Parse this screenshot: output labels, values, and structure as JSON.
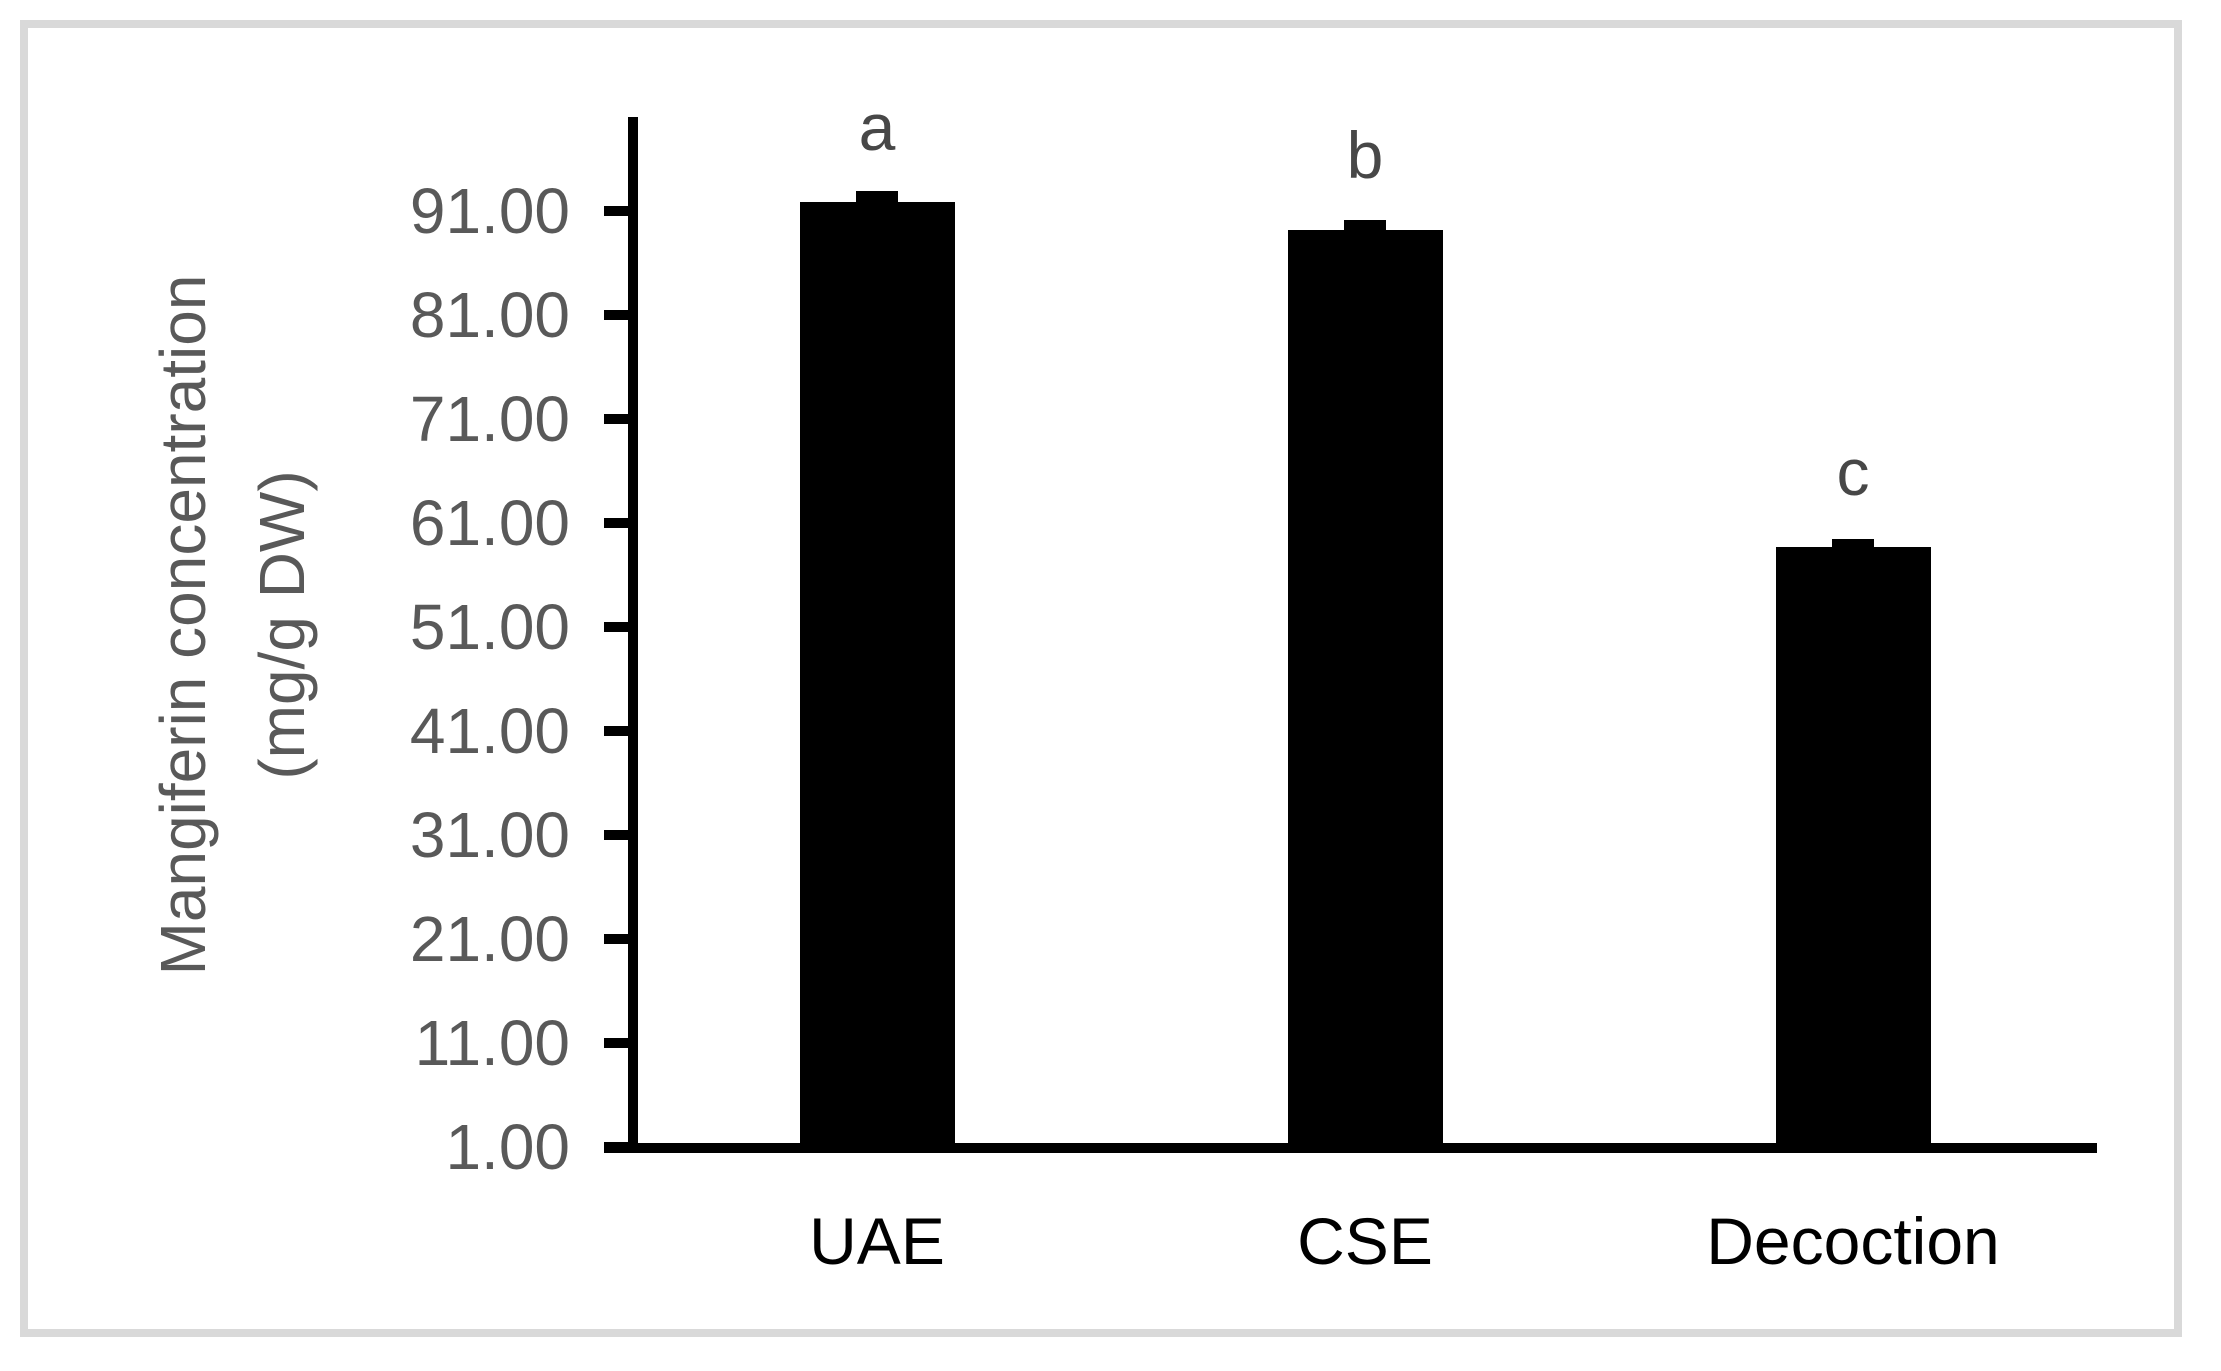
{
  "frame": {
    "border_color": "#d9d9d9",
    "background_color": "#ffffff"
  },
  "chart_data": {
    "type": "bar",
    "title": "",
    "categories": [
      "UAE",
      "CSE",
      "Decoction"
    ],
    "values": [
      91.8,
      89.1,
      58.7
    ],
    "error_bars": [
      1.1,
      1.0,
      0.7
    ],
    "significance_letters": [
      "a",
      "b",
      "c"
    ],
    "ylabel_line1": "Mangiferin concentration",
    "ylabel_line2": "(mg/g DW)",
    "xlabel": "",
    "yticks": [
      1,
      11,
      21,
      31,
      41,
      51,
      61,
      71,
      81,
      91
    ],
    "ytick_labels": [
      "1.00",
      "11.00",
      "21.00",
      "31.00",
      "41.00",
      "51.00",
      "61.00",
      "71.00",
      "81.00",
      "91.00"
    ],
    "ylim": [
      1,
      100
    ],
    "grid": false,
    "legend": null,
    "bar_color": "#000000",
    "axis_color": "#000000",
    "tick_label_color": "#595959",
    "letter_color": "#474747"
  }
}
